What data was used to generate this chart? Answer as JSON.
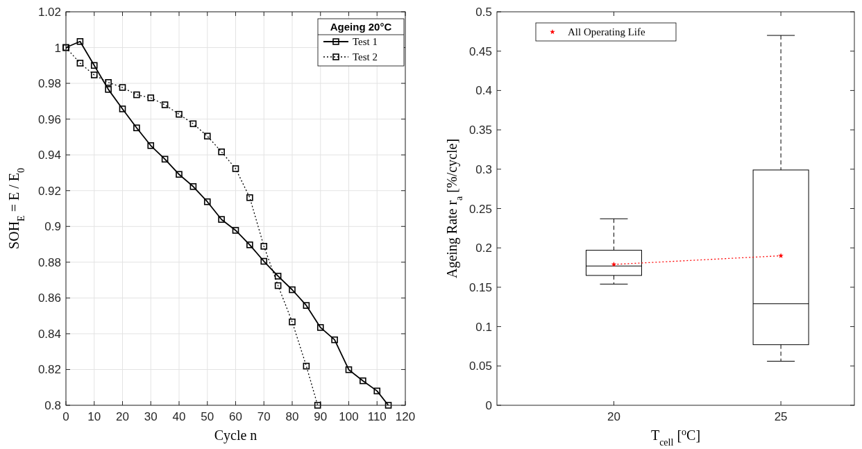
{
  "chart_data": [
    {
      "type": "line",
      "xlabel": "Cycle $_{}$n",
      "ylabel": "SOH$_{E}$ = E / E$_{0}$",
      "legend_title": "Ageing 20°C",
      "legend": "top right",
      "grid": true,
      "marker": "square",
      "xlim": [
        0,
        120
      ],
      "xticks": [
        0,
        10,
        20,
        30,
        40,
        50,
        60,
        70,
        80,
        90,
        100,
        110,
        120
      ],
      "ylim": [
        0.8,
        1.02
      ],
      "yticks": [
        0.8,
        0.82,
        0.84,
        0.86,
        0.88,
        0.9,
        0.92,
        0.94,
        0.96,
        0.98,
        1,
        1.02
      ],
      "series": [
        {
          "name": "Test 1",
          "color": "#000000",
          "line_style": "solid",
          "x": [
            0,
            5,
            10,
            15,
            20,
            25,
            30,
            35,
            40,
            45,
            50,
            55,
            60,
            65,
            70,
            75,
            80,
            85,
            90,
            95,
            100,
            105,
            110,
            114
          ],
          "values": [
            1.0,
            1.0034,
            0.99,
            0.9766,
            0.9657,
            0.9551,
            0.9452,
            0.9376,
            0.9291,
            0.9223,
            0.9138,
            0.9039,
            0.8978,
            0.8897,
            0.8805,
            0.8722,
            0.8646,
            0.8558,
            0.8435,
            0.8366,
            0.8199,
            0.8137,
            0.808,
            0.8
          ]
        },
        {
          "name": "Test 2",
          "color": "#000000",
          "line_style": "dotted",
          "x": [
            0,
            5,
            10,
            15,
            20,
            25,
            30,
            35,
            40,
            45,
            50,
            55,
            60,
            65,
            70,
            75,
            80,
            85,
            89
          ],
          "values": [
            1.0,
            0.9913,
            0.9847,
            0.9805,
            0.9777,
            0.9736,
            0.9719,
            0.968,
            0.9627,
            0.9574,
            0.9505,
            0.9417,
            0.9323,
            0.9161,
            0.8889,
            0.8669,
            0.8466,
            0.8219,
            0.8
          ]
        }
      ]
    },
    {
      "type": "box",
      "xlabel": "T$_{cell}$ [$^{o}$C]",
      "ylabel": "Ageing Rate r$_{a}$ [%/cycle]",
      "legend": "top left",
      "x": [
        20,
        25
      ],
      "xlim": [
        16.5,
        27.2
      ],
      "xticks": [
        20,
        25
      ],
      "ylim": [
        0,
        0.5
      ],
      "yticks": [
        0,
        0.05,
        0.1,
        0.15,
        0.2,
        0.25,
        0.3,
        0.35,
        0.4,
        0.45,
        0.5
      ],
      "boxes": [
        {
          "low": 0.154,
          "q1": 0.165,
          "median": 0.177,
          "q3": 0.197,
          "high": 0.237
        },
        {
          "low": 0.056,
          "q1": 0.077,
          "median": 0.129,
          "q3": 0.299,
          "high": 0.47
        }
      ],
      "series": [
        {
          "type": "line",
          "name": "All Operating Life",
          "color": "#ff0000",
          "marker": "star",
          "line_style": "dotted",
          "x": [
            20,
            25
          ],
          "values": [
            0.179,
            0.19
          ]
        }
      ]
    }
  ]
}
